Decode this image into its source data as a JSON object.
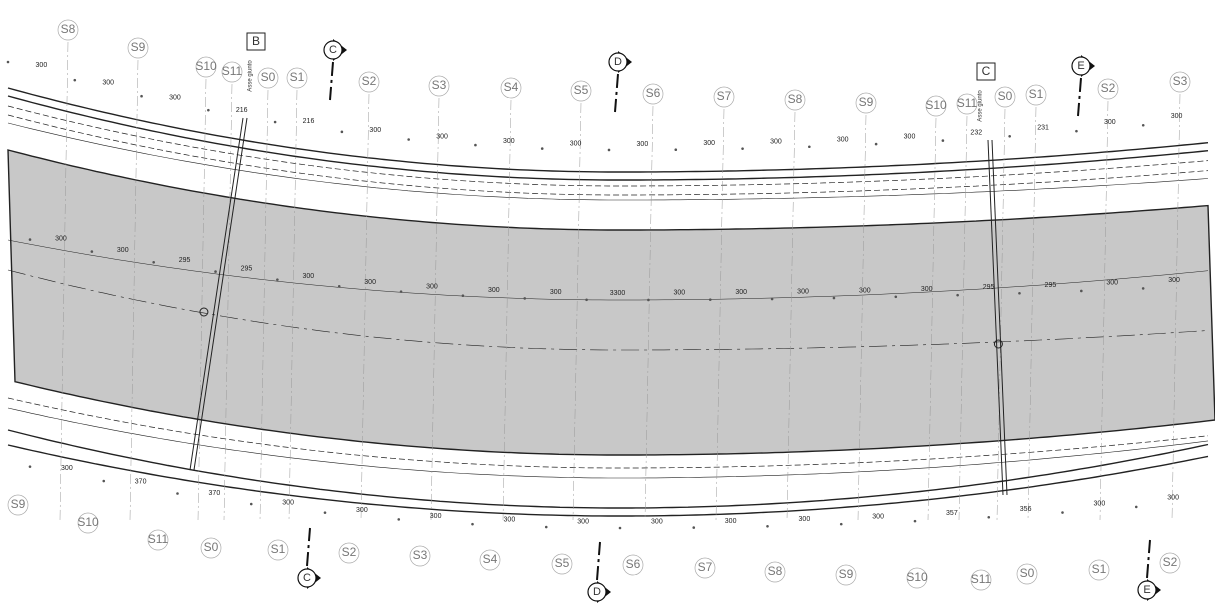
{
  "top_sections": [
    "S8",
    "S9",
    "S10",
    "S11",
    "S0",
    "S1",
    "S2",
    "S3",
    "S4",
    "S5",
    "S6",
    "S7",
    "S8",
    "S9",
    "S10",
    "S11",
    "S0",
    "S1",
    "S2",
    "S3"
  ],
  "bottom_sections": [
    "S9",
    "S10",
    "S11",
    "S0",
    "S1",
    "S2",
    "S3",
    "S4",
    "S5",
    "S6",
    "S7",
    "S8",
    "S9",
    "S10",
    "S11",
    "S0",
    "S1",
    "S2"
  ],
  "joints": [
    {
      "label": "B",
      "note": "Asse giunto"
    },
    {
      "label": "C",
      "note": "Asse giunto"
    }
  ],
  "cuts_top": [
    "C",
    "D",
    "E"
  ],
  "cuts_bottom": [
    "C",
    "D",
    "E"
  ],
  "dims_top": [
    "300",
    "300",
    "300",
    "216",
    "216",
    "300",
    "300",
    "300",
    "300",
    "300",
    "300",
    "300",
    "300",
    "300",
    "232",
    "231",
    "300",
    "300"
  ],
  "dims_middle": [
    "300",
    "300",
    "295",
    "295",
    "300",
    "300",
    "300",
    "300",
    "300",
    "3300",
    "300",
    "300",
    "300",
    "300",
    "300",
    "295",
    "295",
    "300",
    "300"
  ],
  "dims_bottom": [
    "300",
    "370",
    "370",
    "300",
    "300",
    "300",
    "300",
    "300",
    "300",
    "300",
    "300",
    "300",
    "357",
    "356",
    "300",
    "300"
  ]
}
